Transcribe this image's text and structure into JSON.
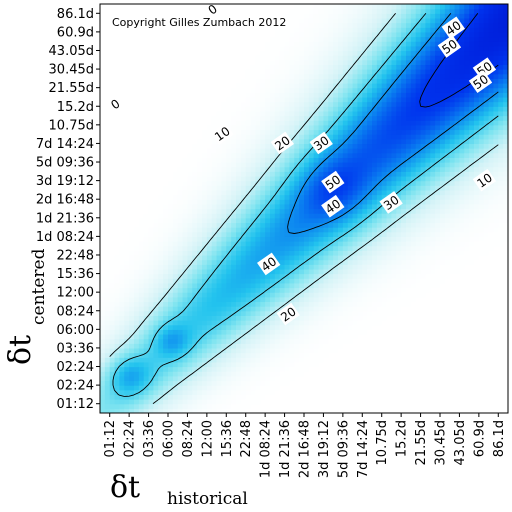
{
  "chart_data": {
    "type": "heatmap",
    "title": "",
    "copyright": "Copyright Gilles Zumbach 2012",
    "xlabel": {
      "symbol": "δt",
      "subscript": "historical"
    },
    "ylabel": {
      "symbol": "δt",
      "subscript": "centered"
    },
    "x_ticks": [
      "01:12",
      "02:24",
      "03:36",
      "06:00",
      "08:24",
      "12:00",
      "15:36",
      "22:48",
      "1d 08:24",
      "1d 21:36",
      "2d 16:48",
      "3d 19:12",
      "5d 09:36",
      "7d 14:24",
      "10.75d",
      "15.2d",
      "21.55d",
      "30.45d",
      "43.05d",
      "60.9d",
      "86.1d"
    ],
    "y_ticks": [
      "01:12",
      "02:24",
      "02:24",
      "03:36",
      "06:00",
      "08:24",
      "12:00",
      "15:36",
      "22:48",
      "1d 08:24",
      "1d 21:36",
      "2d 16:48",
      "3d 19:12",
      "5d 09:36",
      "7d 14:24",
      "10.75d",
      "15.2d",
      "21.55d",
      "30.45d",
      "43.05d",
      "60.9d",
      "86.1d"
    ],
    "contour_levels": [
      0,
      10,
      20,
      30,
      40,
      50
    ],
    "contour_labels": [
      {
        "text": "0",
        "x": 0.3,
        "y": 16.1
      },
      {
        "text": "0",
        "x": 5.3,
        "y": 21.2
      },
      {
        "text": "10",
        "x": 5.8,
        "y": 14.5
      },
      {
        "text": "20",
        "x": 8.9,
        "y": 14.0
      },
      {
        "text": "30",
        "x": 10.9,
        "y": 14.0
      },
      {
        "text": "40",
        "x": 17.7,
        "y": 20.2
      },
      {
        "text": "50",
        "x": 17.5,
        "y": 19.2
      },
      {
        "text": "50",
        "x": 19.3,
        "y": 18.0
      },
      {
        "text": "50",
        "x": 19.1,
        "y": 17.3
      },
      {
        "text": "50",
        "x": 11.5,
        "y": 11.9
      },
      {
        "text": "40",
        "x": 11.5,
        "y": 10.6
      },
      {
        "text": "30",
        "x": 14.5,
        "y": 10.8
      },
      {
        "text": "40",
        "x": 8.2,
        "y": 7.5
      },
      {
        "text": "20",
        "x": 9.2,
        "y": 4.8
      },
      {
        "text": "10",
        "x": 19.3,
        "y": 12.0
      }
    ],
    "colorscale": [
      "#ffffff",
      "#d4f3f7",
      "#7fe4f0",
      "#22c3ee",
      "#0a7ff0",
      "#0033ee",
      "#0010cc"
    ],
    "grid": false,
    "legend": "none"
  }
}
